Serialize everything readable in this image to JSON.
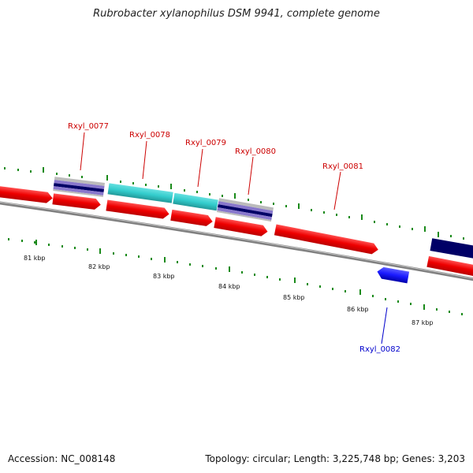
{
  "title": "Rubrobacter xylanophilus DSM 9941, complete genome",
  "footer": {
    "accession": "Accession: NC_008148",
    "summary": "Topology: circular; Length: 3,225,748 bp; Genes: 3,203"
  },
  "scale_labels": [
    "81 kbp",
    "82 kbp",
    "83 kbp",
    "84 kbp",
    "85 kbp",
    "86 kbp",
    "87 kbp"
  ],
  "gene_labels": [
    {
      "text": "Rxyl_0077",
      "color": "#cc0000"
    },
    {
      "text": "Rxyl_0078",
      "color": "#cc0000"
    },
    {
      "text": "Rxyl_0079",
      "color": "#cc0000"
    },
    {
      "text": "Rxyl_0080",
      "color": "#cc0000"
    },
    {
      "text": "Rxyl_0081",
      "color": "#cc0000"
    },
    {
      "text": "Rxyl_0082",
      "color": "#0000cc"
    }
  ],
  "colors": {
    "cds": "#ee0000",
    "cds_reverse": "#1a1aff",
    "backbone": "#808080",
    "tick": "#1a8a1a",
    "feature_navy": "#000066",
    "feature_cyan": "#33cccc",
    "feature_lavender": "#8877cc"
  }
}
